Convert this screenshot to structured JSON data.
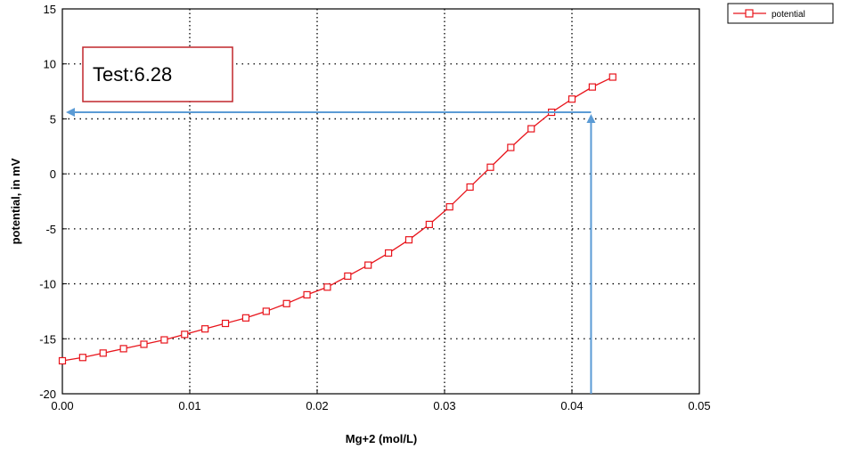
{
  "chart_data": {
    "type": "line",
    "xlabel": "Mg+2 (mol/L)",
    "ylabel": "potential, in mV",
    "xlim": [
      0,
      0.05
    ],
    "ylim": [
      -20,
      15
    ],
    "xticks": [
      0,
      0.01,
      0.02,
      0.03,
      0.04,
      0.05
    ],
    "xtick_labels": [
      "0.00",
      "0.01",
      "0.02",
      "0.03",
      "0.04",
      "0.05"
    ],
    "yticks": [
      -20,
      -15,
      -10,
      -5,
      0,
      5,
      10,
      15
    ],
    "ytick_labels": [
      "-20",
      "-15",
      "-10",
      "-5",
      "0",
      "5",
      "10",
      "15"
    ],
    "grid": "dotted",
    "legend_position": "outside-top-right",
    "series": [
      {
        "name": "potential",
        "color": "#e8141b",
        "marker": "open-square",
        "x": [
          0.0,
          0.0016,
          0.0032,
          0.0048,
          0.0064,
          0.008,
          0.0096,
          0.0112,
          0.0128,
          0.0144,
          0.016,
          0.0176,
          0.0192,
          0.0208,
          0.0224,
          0.024,
          0.0256,
          0.0272,
          0.0288,
          0.0304,
          0.032,
          0.0336,
          0.0352,
          0.0368,
          0.0384,
          0.04,
          0.0416,
          0.0432
        ],
        "y": [
          -17.0,
          -16.7,
          -16.3,
          -15.9,
          -15.5,
          -15.1,
          -14.6,
          -14.1,
          -13.6,
          -13.1,
          -12.5,
          -11.8,
          -11.0,
          -10.3,
          -9.3,
          -8.3,
          -7.2,
          -6.0,
          -4.6,
          -3.0,
          -1.2,
          0.6,
          2.4,
          4.1,
          5.6,
          6.8,
          7.9,
          8.8
        ]
      }
    ],
    "annotations": {
      "box_text": "Test:6.28",
      "vertical_arrow": {
        "x": 0.0415,
        "from_y": -20,
        "to_y": 5.6
      },
      "horizontal_arrow": {
        "y": 5.6,
        "from_x": 0.0415,
        "to_x": 0
      },
      "arrow_color": "#5b9bd5",
      "box_border_color": "#c0262b"
    }
  }
}
